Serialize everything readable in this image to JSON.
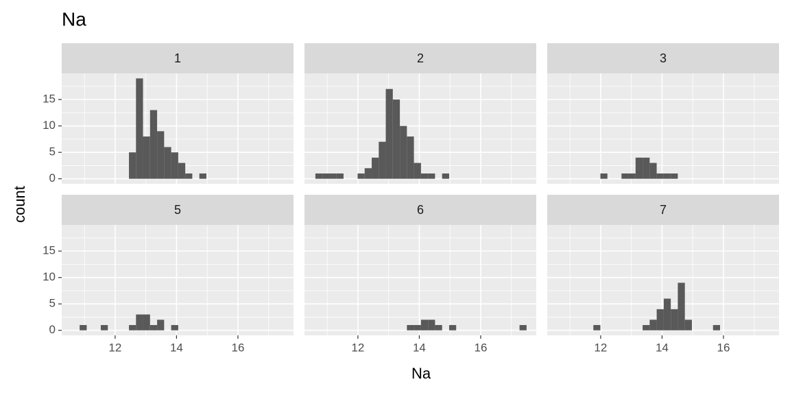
{
  "title": "Na",
  "xlabel": "Na",
  "ylabel": "count",
  "chart_data": [
    {
      "type": "histogram",
      "title": "1",
      "bins": [
        10.615,
        10.844,
        11.074,
        11.303,
        11.532,
        11.762,
        11.991,
        12.22,
        12.45,
        12.679,
        12.908,
        13.137,
        13.367,
        13.596,
        13.825,
        14.055,
        14.284,
        14.513,
        14.743,
        14.972,
        15.201,
        15.431,
        15.66,
        15.889,
        16.119,
        16.348,
        16.577,
        16.807,
        17.036,
        17.265,
        17.494
      ],
      "counts": [
        0,
        0,
        0,
        0,
        0,
        0,
        0,
        0,
        5,
        19,
        8,
        13,
        9,
        6,
        5,
        3,
        1,
        0,
        1,
        0,
        0,
        0,
        0,
        0,
        0,
        0,
        0,
        0,
        0,
        0
      ],
      "color": "#595959",
      "xlim": [
        10.26,
        17.81
      ],
      "ylim": [
        -0.95,
        19.95
      ],
      "xticks": [
        12,
        14,
        16
      ],
      "yticks": [
        0,
        5,
        10,
        15
      ]
    },
    {
      "type": "histogram",
      "title": "2",
      "bins": [
        10.615,
        10.844,
        11.074,
        11.303,
        11.532,
        11.762,
        11.991,
        12.22,
        12.45,
        12.679,
        12.908,
        13.137,
        13.367,
        13.596,
        13.825,
        14.055,
        14.284,
        14.513,
        14.743,
        14.972,
        15.201,
        15.431,
        15.66,
        15.889,
        16.119,
        16.348,
        16.577,
        16.807,
        17.036,
        17.265,
        17.494
      ],
      "counts": [
        1,
        1,
        1,
        1,
        0,
        0,
        1,
        2,
        4,
        7,
        17,
        15,
        10,
        8,
        3,
        1,
        1,
        0,
        1,
        0,
        0,
        0,
        0,
        0,
        0,
        0,
        0,
        0,
        0,
        0
      ],
      "color": "#595959",
      "xlim": [
        10.26,
        17.81
      ],
      "ylim": [
        -0.95,
        19.95
      ],
      "xticks": [
        12,
        14,
        16
      ],
      "yticks": [
        0,
        5,
        10,
        15
      ]
    },
    {
      "type": "histogram",
      "title": "3",
      "bins": [
        10.615,
        10.844,
        11.074,
        11.303,
        11.532,
        11.762,
        11.991,
        12.22,
        12.45,
        12.679,
        12.908,
        13.137,
        13.367,
        13.596,
        13.825,
        14.055,
        14.284,
        14.513,
        14.743,
        14.972,
        15.201,
        15.431,
        15.66,
        15.889,
        16.119,
        16.348,
        16.577,
        16.807,
        17.036,
        17.265,
        17.494
      ],
      "counts": [
        0,
        0,
        0,
        0,
        0,
        0,
        1,
        0,
        0,
        1,
        1,
        4,
        4,
        3,
        1,
        1,
        1,
        0,
        0,
        0,
        0,
        0,
        0,
        0,
        0,
        0,
        0,
        0,
        0,
        0
      ],
      "color": "#595959",
      "xlim": [
        10.26,
        17.81
      ],
      "ylim": [
        -0.95,
        19.95
      ],
      "xticks": [
        12,
        14,
        16
      ],
      "yticks": [
        0,
        5,
        10,
        15
      ]
    },
    {
      "type": "histogram",
      "title": "5",
      "bins": [
        10.615,
        10.844,
        11.074,
        11.303,
        11.532,
        11.762,
        11.991,
        12.22,
        12.45,
        12.679,
        12.908,
        13.137,
        13.367,
        13.596,
        13.825,
        14.055,
        14.284,
        14.513,
        14.743,
        14.972,
        15.201,
        15.431,
        15.66,
        15.889,
        16.119,
        16.348,
        16.577,
        16.807,
        17.036,
        17.265,
        17.494
      ],
      "counts": [
        0,
        1,
        0,
        0,
        1,
        0,
        0,
        0,
        1,
        3,
        3,
        1,
        2,
        0,
        1,
        0,
        0,
        0,
        0,
        0,
        0,
        0,
        0,
        0,
        0,
        0,
        0,
        0,
        0,
        0
      ],
      "color": "#595959",
      "xlim": [
        10.26,
        17.81
      ],
      "ylim": [
        -0.95,
        19.95
      ],
      "xticks": [
        12,
        14,
        16
      ],
      "yticks": [
        0,
        5,
        10,
        15
      ]
    },
    {
      "type": "histogram",
      "title": "6",
      "bins": [
        10.615,
        10.844,
        11.074,
        11.303,
        11.532,
        11.762,
        11.991,
        12.22,
        12.45,
        12.679,
        12.908,
        13.137,
        13.367,
        13.596,
        13.825,
        14.055,
        14.284,
        14.513,
        14.743,
        14.972,
        15.201,
        15.431,
        15.66,
        15.889,
        16.119,
        16.348,
        16.577,
        16.807,
        17.036,
        17.265,
        17.494
      ],
      "counts": [
        0,
        0,
        0,
        0,
        0,
        0,
        0,
        0,
        0,
        0,
        0,
        0,
        0,
        1,
        1,
        2,
        2,
        1,
        0,
        1,
        0,
        0,
        0,
        0,
        0,
        0,
        0,
        0,
        0,
        1
      ],
      "color": "#595959",
      "xlim": [
        10.26,
        17.81
      ],
      "ylim": [
        -0.95,
        19.95
      ],
      "xticks": [
        12,
        14,
        16
      ],
      "yticks": [
        0,
        5,
        10,
        15
      ]
    },
    {
      "type": "histogram",
      "title": "7",
      "bins": [
        10.615,
        10.844,
        11.074,
        11.303,
        11.532,
        11.762,
        11.991,
        12.22,
        12.45,
        12.679,
        12.908,
        13.137,
        13.367,
        13.596,
        13.825,
        14.055,
        14.284,
        14.513,
        14.743,
        14.972,
        15.201,
        15.431,
        15.66,
        15.889,
        16.119,
        16.348,
        16.577,
        16.807,
        17.036,
        17.265,
        17.494
      ],
      "counts": [
        0,
        0,
        0,
        0,
        0,
        1,
        0,
        0,
        0,
        0,
        0,
        0,
        1,
        2,
        4,
        6,
        4,
        9,
        2,
        0,
        0,
        0,
        1,
        0,
        0,
        0,
        0,
        0,
        0,
        0
      ],
      "color": "#595959",
      "xlim": [
        10.26,
        17.81
      ],
      "ylim": [
        -0.95,
        19.95
      ],
      "xticks": [
        12,
        14,
        16
      ],
      "yticks": [
        0,
        5,
        10,
        15
      ]
    }
  ]
}
